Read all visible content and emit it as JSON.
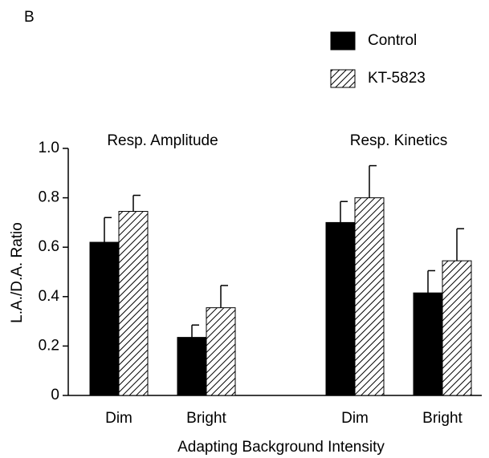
{
  "panel_label": "B",
  "chart_data": {
    "type": "bar",
    "categories": [
      "Dim",
      "Bright",
      "Dim",
      "Bright"
    ],
    "annotations": [
      "Resp. Amplitude",
      "Resp. Kinetics"
    ],
    "series": [
      {
        "name": "Control",
        "color": "#000000",
        "pattern": "solid",
        "values": [
          0.62,
          0.235,
          0.7,
          0.415
        ],
        "errors": [
          0.1,
          0.05,
          0.085,
          0.09
        ]
      },
      {
        "name": "KT-5823",
        "color": "#000000",
        "pattern": "hatch",
        "values": [
          0.745,
          0.355,
          0.8,
          0.545
        ],
        "errors": [
          0.065,
          0.09,
          0.13,
          0.13
        ]
      }
    ],
    "x_label": "Adapting Background Intensity",
    "y_label": "L.A./D.A. Ratio",
    "ylim": [
      0,
      1
    ],
    "yticks": [
      0,
      0.2,
      0.4,
      0.6,
      0.8,
      {
        "value": 1,
        "label": "1.0"
      }
    ],
    "legend": "top-right",
    "grid": false
  }
}
